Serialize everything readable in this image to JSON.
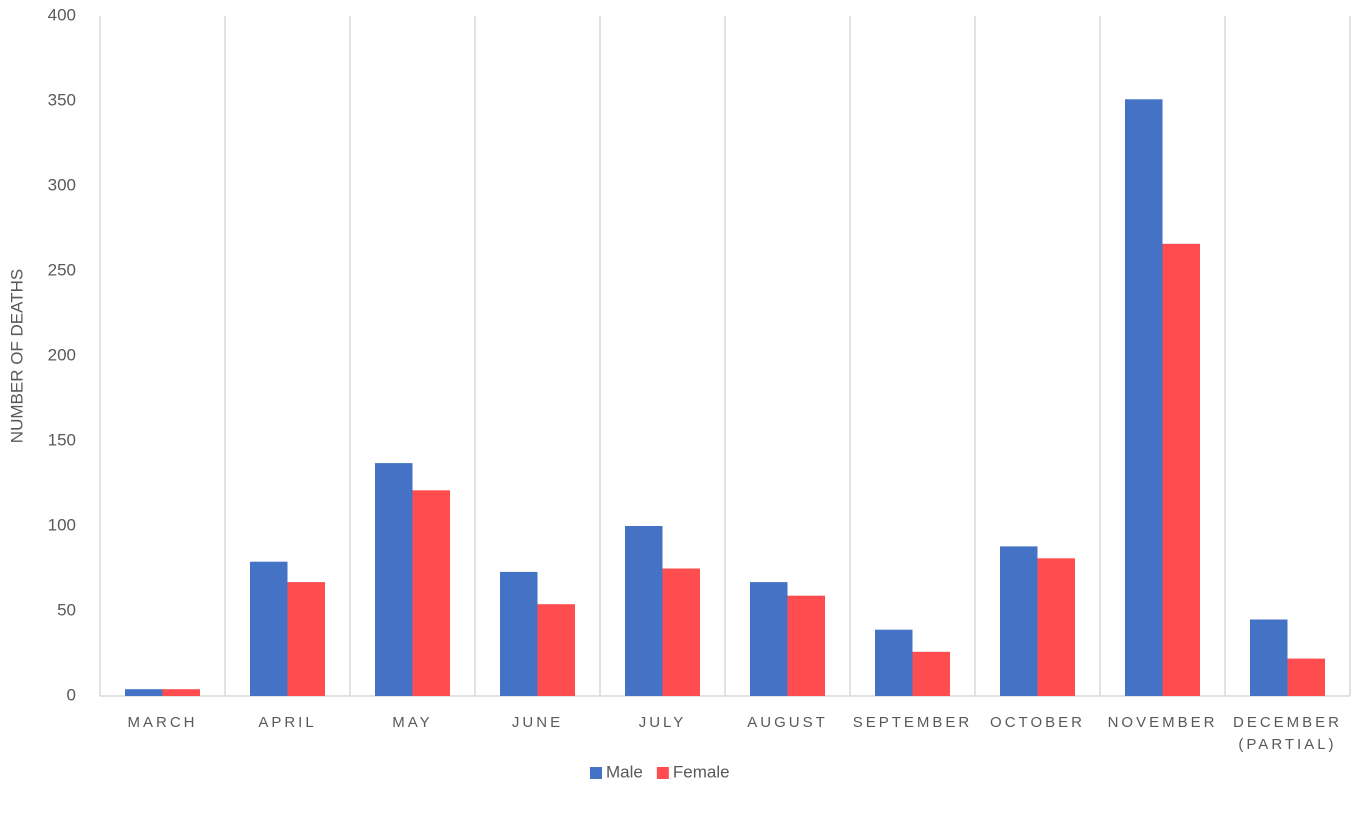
{
  "chart_data": {
    "type": "bar",
    "y_axis_label": "NUMBER OF DEATHS",
    "categories": [
      "MARCH",
      "APRIL",
      "MAY",
      "JUNE",
      "JULY",
      "AUGUST",
      "SEPTEMBER",
      "OCTOBER",
      "NOVEMBER",
      "DECEMBER (PARTIAL)"
    ],
    "series": [
      {
        "name": "Male",
        "color": "#4472c4",
        "values": [
          4,
          79,
          137,
          73,
          100,
          67,
          39,
          88,
          351,
          45
        ]
      },
      {
        "name": "Female",
        "color": "#ff4d4f",
        "values": [
          4,
          67,
          121,
          54,
          75,
          59,
          26,
          81,
          266,
          22
        ]
      }
    ],
    "ylim": [
      0,
      400
    ],
    "yticks": [
      0,
      50,
      100,
      150,
      200,
      250,
      300,
      350,
      400
    ],
    "legend": "bottom"
  }
}
